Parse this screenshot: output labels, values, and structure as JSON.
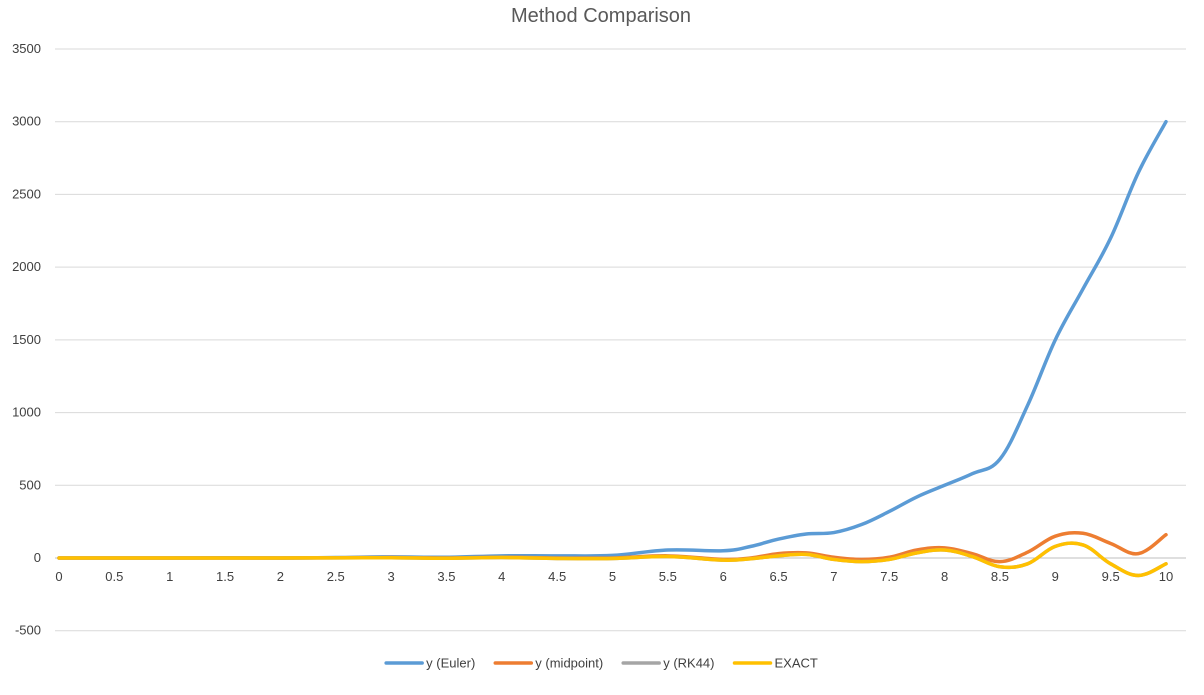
{
  "chart_data": {
    "type": "line",
    "title": "Method Comparison",
    "xlabel": "",
    "ylabel": "",
    "xlim": [
      0,
      10
    ],
    "ylim": [
      -750,
      3500
    ],
    "grid": true,
    "legend_position": "bottom",
    "x_ticks": [
      "0",
      "0.5",
      "1",
      "1.5",
      "2",
      "2.5",
      "3",
      "3.5",
      "4",
      "4.5",
      "5",
      "5.5",
      "6",
      "6.5",
      "7",
      "7.5",
      "8",
      "8.5",
      "9",
      "9.5",
      "10"
    ],
    "y_ticks": [
      "-500",
      "0",
      "500",
      "1000",
      "1500",
      "2000",
      "2500",
      "3000",
      "3500"
    ],
    "x": [
      0,
      0.5,
      1,
      1.5,
      2,
      2.5,
      3,
      3.5,
      4,
      4.5,
      5,
      5.5,
      6,
      6.25,
      6.5,
      6.75,
      7,
      7.25,
      7.5,
      7.75,
      8,
      8.25,
      8.5,
      8.75,
      9,
      9.25,
      9.5,
      9.75,
      10
    ],
    "series": [
      {
        "name": "y (Euler)",
        "color": "#5b9bd5",
        "values": [
          0,
          0,
          0,
          2,
          0,
          3,
          8,
          5,
          15,
          15,
          18,
          55,
          50,
          80,
          130,
          165,
          175,
          230,
          320,
          420,
          500,
          580,
          680,
          1050,
          1500,
          1850,
          2200,
          2650,
          3000
        ]
      },
      {
        "name": "y (midpoint)",
        "color": "#ed7d31",
        "values": [
          0,
          0,
          0,
          0,
          0,
          2,
          3,
          0,
          5,
          0,
          0,
          15,
          -10,
          0,
          30,
          35,
          5,
          -10,
          5,
          55,
          70,
          30,
          -25,
          40,
          150,
          170,
          100,
          30,
          160
        ]
      },
      {
        "name": "y (RK44)",
        "color": "#a5a5a5",
        "values": [
          0,
          0,
          0,
          0,
          0,
          1,
          2,
          -2,
          3,
          -3,
          -3,
          10,
          -15,
          -5,
          15,
          25,
          -10,
          -25,
          -10,
          35,
          55,
          10,
          -60,
          -40,
          80,
          90,
          -40,
          -120,
          -40
        ]
      },
      {
        "name": "EXACT",
        "color": "#ffc000",
        "values": [
          0,
          0,
          0,
          0,
          0,
          1,
          2,
          -2,
          3,
          -3,
          -3,
          10,
          -15,
          -5,
          15,
          25,
          -10,
          -25,
          -10,
          35,
          55,
          10,
          -60,
          -40,
          80,
          90,
          -40,
          -120,
          -40
        ]
      }
    ]
  }
}
